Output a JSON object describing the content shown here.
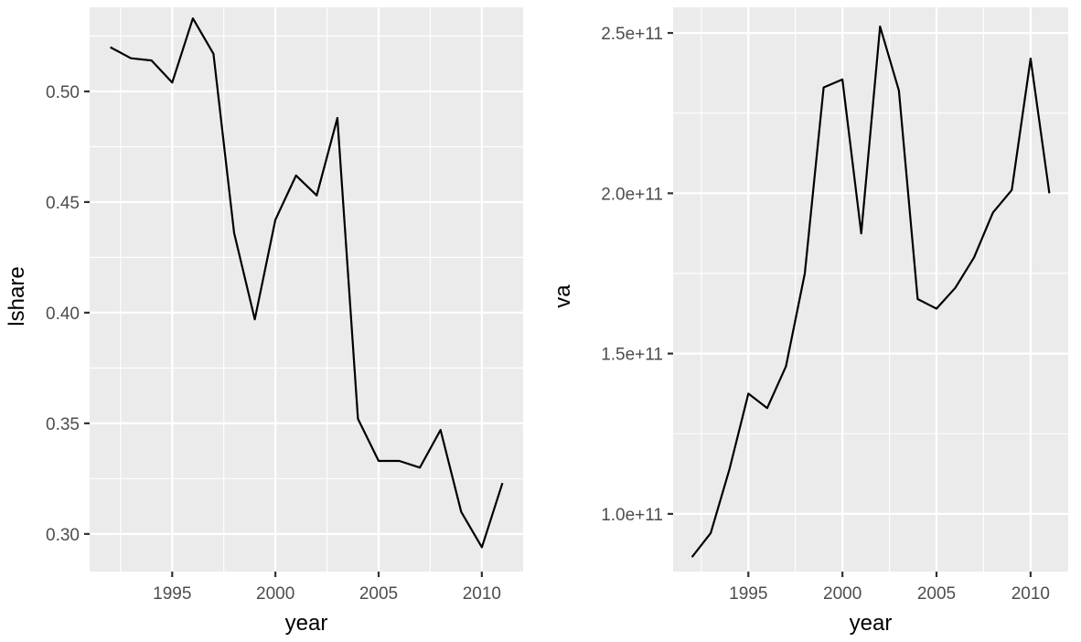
{
  "chart_data": [
    {
      "type": "line",
      "xlabel": "year",
      "ylabel": "lshare",
      "xlim": [
        1991,
        2012
      ],
      "ylim": [
        0.283,
        0.538
      ],
      "x_ticks": [
        1995,
        2000,
        2005,
        2010
      ],
      "x_tick_labels": [
        "1995",
        "2000",
        "2005",
        "2010"
      ],
      "y_ticks": [
        0.3,
        0.35,
        0.4,
        0.45,
        0.5
      ],
      "y_tick_labels": [
        "0.30",
        "0.35",
        "0.40",
        "0.45",
        "0.50"
      ],
      "grid": true,
      "background": "#EBEBEB",
      "line_color": "#000000",
      "x": [
        1992,
        1993,
        1994,
        1995,
        1996,
        1997,
        1998,
        1999,
        2000,
        2001,
        2002,
        2003,
        2004,
        2005,
        2006,
        2007,
        2008,
        2009,
        2010,
        2011
      ],
      "y": [
        0.52,
        0.515,
        0.514,
        0.504,
        0.533,
        0.517,
        0.436,
        0.397,
        0.442,
        0.462,
        0.453,
        0.488,
        0.352,
        0.333,
        0.333,
        0.33,
        0.347,
        0.31,
        0.294,
        0.323
      ]
    },
    {
      "type": "line",
      "xlabel": "year",
      "ylabel": "va",
      "xlim": [
        1991,
        2012
      ],
      "ylim": [
        82000000000.0,
        258000000000.0
      ],
      "x_ticks": [
        1995,
        2000,
        2005,
        2010
      ],
      "x_tick_labels": [
        "1995",
        "2000",
        "2005",
        "2010"
      ],
      "y_ticks": [
        100000000000.0,
        150000000000.0,
        200000000000.0,
        250000000000.0
      ],
      "y_tick_labels": [
        "1.0e+11",
        "1.5e+11",
        "2.0e+11",
        "2.5e+11"
      ],
      "grid": true,
      "background": "#EBEBEB",
      "line_color": "#000000",
      "x": [
        1992,
        1993,
        1994,
        1995,
        1996,
        1997,
        1998,
        1999,
        2000,
        2001,
        2002,
        2003,
        2004,
        2005,
        2006,
        2007,
        2008,
        2009,
        2010,
        2011
      ],
      "y": [
        86500000000.0,
        94000000000.0,
        114000000000.0,
        137500000000.0,
        133000000000.0,
        146000000000.0,
        175000000000.0,
        233000000000.0,
        235500000000.0,
        187500000000.0,
        252000000000.0,
        232000000000.0,
        167000000000.0,
        164000000000.0,
        170500000000.0,
        180000000000.0,
        194000000000.0,
        201000000000.0,
        242000000000.0,
        200000000000.0
      ]
    }
  ]
}
